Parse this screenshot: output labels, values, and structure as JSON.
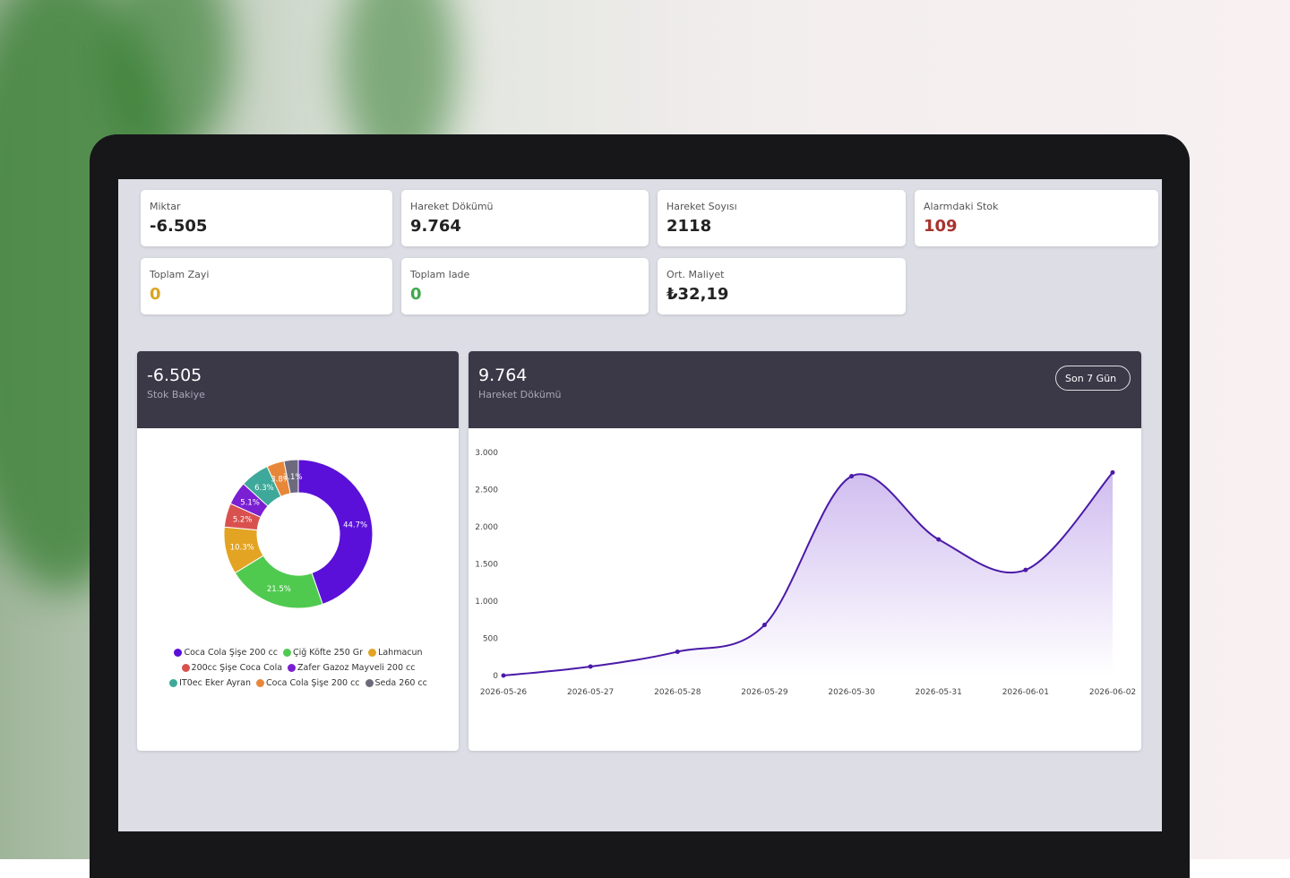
{
  "cards": [
    {
      "label": "Miktar",
      "value": "-6.505"
    },
    {
      "label": "Hareket Dökümü",
      "value": "9.764"
    },
    {
      "label": "Hareket Soyısı",
      "value": "2118"
    },
    {
      "label": "Alarmdaki Stok",
      "value": "109"
    },
    {
      "label": "Toplam Zayi",
      "value": "0"
    },
    {
      "label": "Toplam Iade",
      "value": "0"
    },
    {
      "label": "Ort. Maliyet",
      "value": "₺32,19"
    }
  ],
  "chart_data": [
    {
      "type": "donut",
      "title": "-6.505",
      "subtitle": "Stok Bakiye",
      "categories": [
        "Coca Cola Şişe 200 cc",
        "Çiğ Köfte 250 Gr",
        "Lahmacun",
        "200cc Şişe Coca Cola",
        "Zafer Gazoz Mayveli 200 cc",
        "IT0ec Eker Ayran",
        "Coca Cola Şişe 200 cc",
        "Seda 260 cc"
      ],
      "values": [
        44.7,
        21.5,
        10.3,
        5.2,
        5.1,
        6.3,
        3.8,
        3.1
      ],
      "value_labels": [
        "44.7%",
        "21.5%",
        "10.3%",
        "5.2%",
        "5.1%",
        "6.3%",
        "3.8%",
        "3.1%"
      ],
      "colors": [
        "#5a10d8",
        "#4fca4f",
        "#e3a423",
        "#d9514e",
        "#7b1fd3",
        "#3ea99a",
        "#e8873a",
        "#6c6a7c"
      ]
    },
    {
      "type": "line",
      "title": "9.764",
      "subtitle": "Hareket Dökümü",
      "control": "Son 7 Gün",
      "x": [
        "2026-05-26",
        "2026-05-27",
        "2026-05-28",
        "2026-05-29",
        "2026-05-30",
        "2026-05-31",
        "2026-06-01",
        "2026-06-02"
      ],
      "series": [
        {
          "name": "Hareket Dökümü",
          "color": "#4a1aa8",
          "values": [
            0,
            120,
            320,
            680,
            2680,
            1830,
            1420,
            2730
          ]
        }
      ],
      "ylim": [
        0,
        3000
      ],
      "yticks": [
        0,
        500,
        {
          "value": 1000,
          "label": "1.000"
        },
        {
          "value": 1500,
          "label": "1.500"
        },
        {
          "value": 2000,
          "label": "2.000"
        },
        {
          "value": 2500,
          "label": "2.500"
        },
        {
          "value": 3000,
          "label": "3.000"
        }
      ],
      "grid": false
    }
  ]
}
